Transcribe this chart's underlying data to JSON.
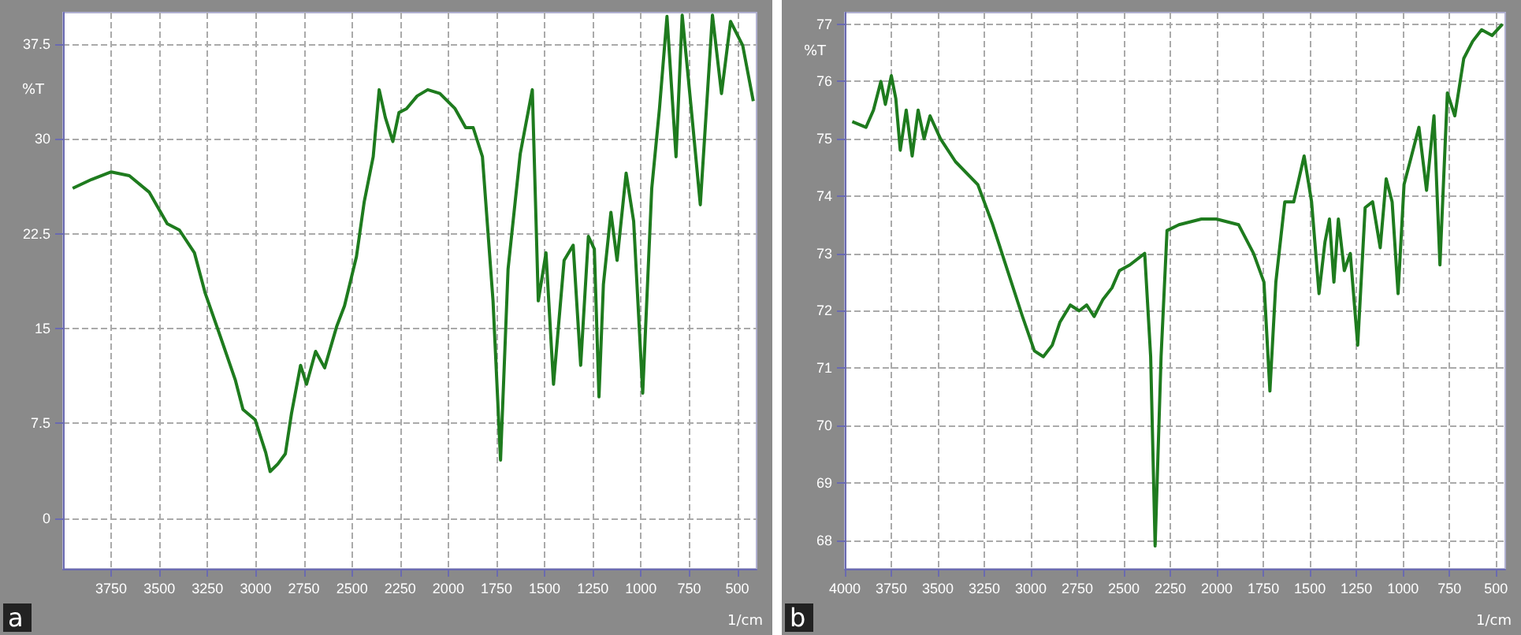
{
  "chart_data": [
    {
      "type": "line",
      "title": "a",
      "xlabel": "1/cm",
      "ylabel": "%T",
      "xlim": [
        4000,
        400
      ],
      "xticks": [
        3750,
        3500,
        3250,
        3000,
        2750,
        2500,
        2250,
        2000,
        1750,
        1500,
        1250,
        1000,
        750,
        500
      ],
      "ylim": [
        -4,
        40
      ],
      "yticks": [
        0,
        7.5,
        15,
        22.5,
        30,
        37.5
      ],
      "grid": true,
      "series": [
        {
          "color": "#1e7b1e",
          "x": [
            3950,
            3852,
            3750,
            3656,
            3553,
            3459,
            3396,
            3318,
            3262,
            3184,
            3105,
            3066,
            3003,
            2948,
            2925,
            2885,
            2846,
            2814,
            2767,
            2736,
            2689,
            2642,
            2579,
            2539,
            2477,
            2437,
            2390,
            2359,
            2327,
            2288,
            2256,
            2217,
            2162,
            2107,
            2044,
            1965,
            1910,
            1871,
            1823,
            1768,
            1729,
            1690,
            1627,
            1564,
            1533,
            1493,
            1454,
            1399,
            1352,
            1313,
            1273,
            1242,
            1218,
            1195,
            1156,
            1124,
            1077,
            1038,
            991,
            944,
            904,
            865,
            818,
            786,
            739,
            692,
            629,
            582,
            535,
            472,
            417
          ],
          "values": [
            26.1,
            26.8,
            27.4,
            27.1,
            25.8,
            23.3,
            22.8,
            21.0,
            17.8,
            14.4,
            10.9,
            8.6,
            7.8,
            5.2,
            3.7,
            4.3,
            5.1,
            8.3,
            12.1,
            10.6,
            13.2,
            11.9,
            15.2,
            16.8,
            20.7,
            25.0,
            28.6,
            33.9,
            31.7,
            29.8,
            32.1,
            32.4,
            33.4,
            33.9,
            33.6,
            32.4,
            30.9,
            30.9,
            28.6,
            17.2,
            4.6,
            19.7,
            28.8,
            33.9,
            17.2,
            21.0,
            10.6,
            20.4,
            21.6,
            12.1,
            22.3,
            21.3,
            9.6,
            18.5,
            24.2,
            20.4,
            27.3,
            23.5,
            9.9,
            26.1,
            32.4,
            39.7,
            28.6,
            39.8,
            32.4,
            24.8,
            39.8,
            33.6,
            39.3,
            37.4,
            33.0
          ]
        }
      ]
    },
    {
      "type": "line",
      "title": "b",
      "xlabel": "1/cm",
      "ylabel": "%T",
      "xlim": [
        4000,
        450
      ],
      "xticks": [
        4000,
        3750,
        3500,
        3250,
        3000,
        2750,
        2500,
        2250,
        2000,
        1750,
        1500,
        1250,
        1000,
        750,
        500
      ],
      "ylim": [
        67.5,
        77.2
      ],
      "yticks": [
        68,
        69,
        70,
        71,
        72,
        73,
        74,
        75,
        76,
        77
      ],
      "grid": true,
      "series": [
        {
          "color": "#1e7b1e",
          "x": [
            3960,
            3886,
            3846,
            3806,
            3782,
            3750,
            3726,
            3702,
            3670,
            3638,
            3606,
            3574,
            3542,
            3486,
            3405,
            3285,
            3205,
            3125,
            3045,
            2981,
            2933,
            2885,
            2844,
            2788,
            2740,
            2700,
            2660,
            2612,
            2564,
            2524,
            2468,
            2388,
            2356,
            2332,
            2300,
            2268,
            2204,
            2083,
            2003,
            1883,
            1803,
            1747,
            1715,
            1683,
            1635,
            1587,
            1531,
            1491,
            1451,
            1419,
            1395,
            1371,
            1347,
            1315,
            1283,
            1243,
            1203,
            1163,
            1122,
            1090,
            1058,
            1026,
            994,
            954,
            914,
            873,
            833,
            801,
            761,
            721,
            673,
            625,
            577,
            521,
            465
          ],
          "values": [
            75.3,
            75.2,
            75.5,
            76.0,
            75.6,
            76.1,
            75.7,
            74.8,
            75.5,
            74.7,
            75.5,
            75.0,
            75.4,
            75.0,
            74.6,
            74.2,
            73.5,
            72.7,
            71.9,
            71.3,
            71.2,
            71.4,
            71.8,
            72.1,
            72.0,
            72.1,
            71.9,
            72.2,
            72.4,
            72.7,
            72.8,
            73.0,
            71.2,
            67.9,
            71.2,
            73.4,
            73.5,
            73.6,
            73.6,
            73.5,
            73.0,
            72.5,
            70.6,
            72.5,
            73.9,
            73.9,
            74.7,
            73.9,
            72.3,
            73.2,
            73.6,
            72.5,
            73.6,
            72.7,
            73.0,
            71.4,
            73.8,
            73.9,
            73.1,
            74.3,
            73.9,
            72.3,
            74.2,
            74.7,
            75.2,
            74.1,
            75.4,
            72.8,
            75.8,
            75.4,
            76.4,
            76.7,
            76.9,
            76.8,
            77.0
          ]
        }
      ]
    }
  ]
}
